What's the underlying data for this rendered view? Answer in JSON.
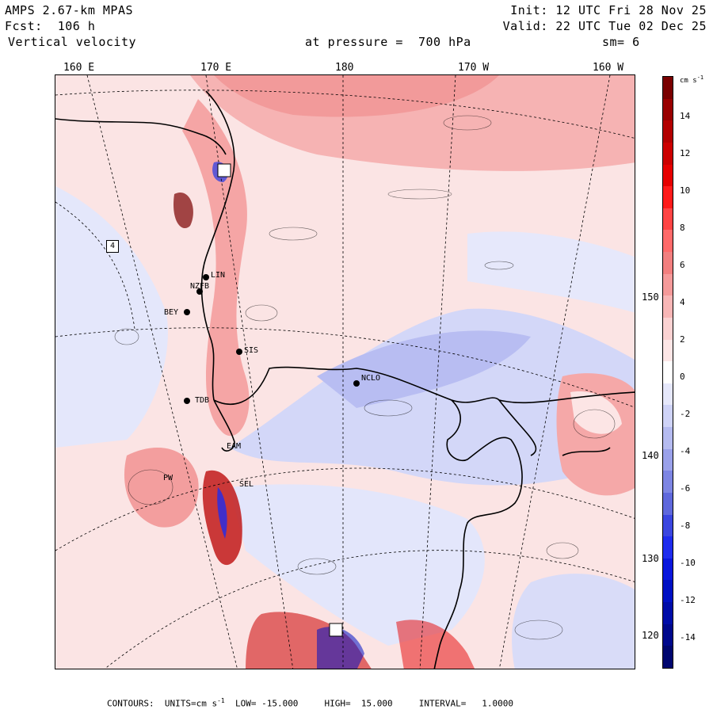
{
  "header": {
    "model": "AMPS 2.67-km MPAS",
    "forecast": "Fcst:  106 h",
    "field": "Vertical velocity",
    "init": "Init: 12 UTC Fri 28 Nov 25",
    "valid": "Valid: 22 UTC Tue 02 Dec 25",
    "pressure": "at pressure =  700 hPa",
    "smoothing": "sm= 6"
  },
  "longitude_labels": [
    "160 E",
    "170 E",
    "180",
    "170 W",
    "160 W"
  ],
  "latitude_labels": [
    "150 W",
    "140 W",
    "130 W",
    "120 W"
  ],
  "stations": [
    {
      "id": "stn-4",
      "label": "4"
    },
    {
      "id": "stn-lin",
      "label": "LIN"
    },
    {
      "id": "stn-nzfb",
      "label": "NZFB"
    },
    {
      "id": "stn-bey",
      "label": "BEY"
    },
    {
      "id": "stn-sis",
      "label": "SIS"
    },
    {
      "id": "stn-nclo",
      "label": "NCLO"
    },
    {
      "id": "stn-tdb",
      "label": "TDB"
    },
    {
      "id": "stn-eam",
      "label": "EAM"
    },
    {
      "id": "stn-sel",
      "label": "SEL"
    },
    {
      "id": "stn-pw",
      "label": "PW"
    }
  ],
  "colorbar": {
    "units": "cm s",
    "units_exp": "-1",
    "labels": [
      "14",
      "12",
      "10",
      "8",
      "6",
      "4",
      "2",
      "0",
      "-2",
      "-4",
      "-6",
      "-8",
      "-10",
      "-12",
      "-14"
    ],
    "colors": [
      "#7a0000",
      "#990000",
      "#b30000",
      "#cc0000",
      "#e60000",
      "#ff1a1a",
      "#ff4444",
      "#ff6a6a",
      "#f27f7f",
      "#f59a9a",
      "#f8b6b6",
      "#fbd2d2",
      "#fde6e6",
      "#ffffff",
      "#e6e8fb",
      "#cfd3f7",
      "#b5bbf0",
      "#9aa1ea",
      "#7d85e3",
      "#5f68dc",
      "#3b46e0",
      "#1f2cee",
      "#0a17dd",
      "#0010c4",
      "#000ca8",
      "#00088c",
      "#00066f"
    ]
  },
  "footer": {
    "prefix": "CONTOURS:  UNITS=cm s",
    "exp": "-1",
    "rest": "  LOW= -15.000     HIGH=  15.000     INTERVAL=   1.0000"
  }
}
